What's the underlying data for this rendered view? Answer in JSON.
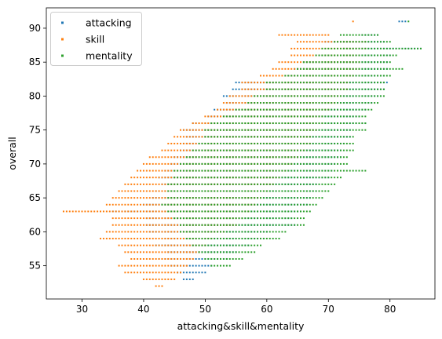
{
  "chart_data": {
    "type": "scatter",
    "xlabel": "attacking&skill&mentality",
    "ylabel": "overall",
    "xlim": [
      24.2,
      87.3
    ],
    "ylim": [
      50.1,
      93.0
    ],
    "xticks": [
      30,
      40,
      50,
      60,
      70,
      80
    ],
    "yticks": [
      55,
      60,
      65,
      70,
      75,
      80,
      85,
      90
    ],
    "grid": false,
    "legend_position": "upper-left",
    "x_step": 0.5,
    "series": [
      {
        "name": "attacking",
        "color": "#1f77b4",
        "rows": [
          {
            "y": 91,
            "x": [
              81.5,
              82.5
            ]
          },
          {
            "y": 89,
            "x": [
              75.5,
              78
            ]
          },
          {
            "y": 88,
            "x": [
              69.5,
              79
            ]
          },
          {
            "y": 87,
            "x": [
              72.5,
              85
            ]
          },
          {
            "y": 86,
            "x": [
              68.5,
              80
            ]
          },
          {
            "y": 85,
            "x": [
              66,
              79.5
            ]
          },
          {
            "y": 84,
            "x": [
              64.5,
              79.5
            ]
          },
          {
            "y": 83,
            "x": [
              63.5,
              79
            ]
          },
          {
            "y": 82,
            "x": [
              55,
              79.5
            ]
          },
          {
            "y": 81,
            "x": [
              54.5,
              79
            ]
          },
          {
            "y": 80,
            "x": [
              53,
              78.5
            ]
          },
          {
            "y": 79,
            "x": [
              53.5,
              77
            ]
          },
          {
            "y": 78,
            "x": [
              51.5,
              76
            ]
          },
          {
            "y": 77,
            "x": [
              50.5,
              75
            ]
          },
          {
            "y": 76,
            "x": [
              48,
              76
            ]
          },
          {
            "y": 75,
            "x": [
              46.5,
              73.5
            ]
          },
          {
            "y": 74,
            "x": [
              47,
              73.5
            ]
          },
          {
            "y": 73,
            "x": [
              46.5,
              72.5
            ]
          },
          {
            "y": 72,
            "x": [
              46,
              72
            ]
          },
          {
            "y": 71,
            "x": [
              45,
              72
            ]
          },
          {
            "y": 70,
            "x": [
              44.5,
              71
            ]
          },
          {
            "y": 69,
            "x": [
              43.5,
              70.5
            ]
          },
          {
            "y": 68,
            "x": [
              42.5,
              70
            ]
          },
          {
            "y": 67,
            "x": [
              43,
              68
            ]
          },
          {
            "y": 66,
            "x": [
              42,
              68
            ]
          },
          {
            "y": 65,
            "x": [
              41.5,
              67
            ]
          },
          {
            "y": 64,
            "x": [
              40,
              66.5
            ]
          },
          {
            "y": 63,
            "x": [
              35,
              65.5
            ]
          },
          {
            "y": 62,
            "x": [
              40.5,
              64
            ]
          },
          {
            "y": 61,
            "x": [
              40.5,
              64.5
            ]
          },
          {
            "y": 60,
            "x": [
              41,
              60
            ]
          },
          {
            "y": 59,
            "x": [
              43,
              59.5
            ]
          },
          {
            "y": 58,
            "x": [
              42,
              57
            ]
          },
          {
            "y": 57,
            "x": [
              44,
              55
            ]
          },
          {
            "y": 56,
            "x": [
              42.5,
              53.5
            ]
          },
          {
            "y": 55,
            "x": [
              44.5,
              51
            ]
          },
          {
            "y": 54,
            "x": [
              45.5,
              50
            ]
          },
          {
            "y": 53,
            "x": [
              46.5,
              48
            ]
          }
        ]
      },
      {
        "name": "skill",
        "color": "#ff7f0e",
        "rows": [
          {
            "y": 91,
            "x": [
              74,
              74
            ]
          },
          {
            "y": 89,
            "x": [
              62,
              70
            ]
          },
          {
            "y": 88,
            "x": [
              65,
              76
            ]
          },
          {
            "y": 87,
            "x": [
              64,
              76
            ]
          },
          {
            "y": 86,
            "x": [
              64,
              75
            ]
          },
          {
            "y": 85,
            "x": [
              62,
              75
            ]
          },
          {
            "y": 84,
            "x": [
              61,
              75
            ]
          },
          {
            "y": 83,
            "x": [
              59,
              74
            ]
          },
          {
            "y": 82,
            "x": [
              56,
              73
            ]
          },
          {
            "y": 81,
            "x": [
              56,
              73
            ]
          },
          {
            "y": 80,
            "x": [
              54,
              72
            ]
          },
          {
            "y": 79,
            "x": [
              53,
              71
            ]
          },
          {
            "y": 78,
            "x": [
              52,
              70
            ]
          },
          {
            "y": 77,
            "x": [
              50,
              69
            ]
          },
          {
            "y": 76,
            "x": [
              48,
              69
            ]
          },
          {
            "y": 75,
            "x": [
              46,
              68
            ]
          },
          {
            "y": 74,
            "x": [
              45,
              67
            ]
          },
          {
            "y": 73,
            "x": [
              44,
              67
            ]
          },
          {
            "y": 72,
            "x": [
              43,
              66
            ]
          },
          {
            "y": 71,
            "x": [
              41,
              65
            ]
          },
          {
            "y": 70,
            "x": [
              40,
              64
            ]
          },
          {
            "y": 69,
            "x": [
              39,
              63
            ]
          },
          {
            "y": 68,
            "x": [
              38,
              62
            ]
          },
          {
            "y": 67,
            "x": [
              37,
              61
            ]
          },
          {
            "y": 66,
            "x": [
              36,
              60
            ]
          },
          {
            "y": 65,
            "x": [
              35,
              59
            ]
          },
          {
            "y": 64,
            "x": [
              34,
              58
            ]
          },
          {
            "y": 63,
            "x": [
              27,
              57
            ]
          },
          {
            "y": 62,
            "x": [
              35,
              56
            ]
          },
          {
            "y": 61,
            "x": [
              35,
              55
            ]
          },
          {
            "y": 60,
            "x": [
              34,
              53
            ]
          },
          {
            "y": 59,
            "x": [
              33,
              51
            ]
          },
          {
            "y": 58,
            "x": [
              36,
              50
            ]
          },
          {
            "y": 57,
            "x": [
              37,
              49
            ]
          },
          {
            "y": 56,
            "x": [
              38,
              48
            ]
          },
          {
            "y": 55,
            "x": [
              36,
              47
            ]
          },
          {
            "y": 54,
            "x": [
              37,
              46
            ]
          },
          {
            "y": 53,
            "x": [
              40,
              45
            ]
          },
          {
            "y": 52,
            "x": [
              42,
              43
            ]
          }
        ]
      },
      {
        "name": "mentality",
        "color": "#2ca02c",
        "rows": [
          {
            "y": 91,
            "x": [
              83,
              83
            ]
          },
          {
            "y": 89,
            "x": [
              72,
              78
            ]
          },
          {
            "y": 88,
            "x": [
              71,
              80
            ]
          },
          {
            "y": 87,
            "x": [
              69,
              85
            ]
          },
          {
            "y": 86,
            "x": [
              68,
              81
            ]
          },
          {
            "y": 85,
            "x": [
              66,
              80
            ]
          },
          {
            "y": 84,
            "x": [
              65,
              82
            ]
          },
          {
            "y": 83,
            "x": [
              63,
              80
            ]
          },
          {
            "y": 82,
            "x": [
              60,
              79
            ]
          },
          {
            "y": 81,
            "x": [
              60,
              79
            ]
          },
          {
            "y": 80,
            "x": [
              58,
              79
            ]
          },
          {
            "y": 79,
            "x": [
              57,
              78
            ]
          },
          {
            "y": 78,
            "x": [
              55,
              77
            ]
          },
          {
            "y": 77,
            "x": [
              53,
              76
            ]
          },
          {
            "y": 76,
            "x": [
              51,
              76
            ]
          },
          {
            "y": 75,
            "x": [
              50,
              76
            ]
          },
          {
            "y": 74,
            "x": [
              50,
              74
            ]
          },
          {
            "y": 73,
            "x": [
              49,
              74
            ]
          },
          {
            "y": 72,
            "x": [
              48,
              74
            ]
          },
          {
            "y": 71,
            "x": [
              47,
              73
            ]
          },
          {
            "y": 70,
            "x": [
              46,
              73
            ]
          },
          {
            "y": 69,
            "x": [
              45,
              76
            ]
          },
          {
            "y": 68,
            "x": [
              45,
              72
            ]
          },
          {
            "y": 67,
            "x": [
              44,
              71
            ]
          },
          {
            "y": 66,
            "x": [
              44,
              70
            ]
          },
          {
            "y": 65,
            "x": [
              44,
              69
            ]
          },
          {
            "y": 64,
            "x": [
              43,
              68
            ]
          },
          {
            "y": 63,
            "x": [
              44,
              67
            ]
          },
          {
            "y": 62,
            "x": [
              45,
              66
            ]
          },
          {
            "y": 61,
            "x": [
              46,
              66
            ]
          },
          {
            "y": 60,
            "x": [
              46,
              63
            ]
          },
          {
            "y": 59,
            "x": [
              47,
              62
            ]
          },
          {
            "y": 58,
            "x": [
              48,
              59
            ]
          },
          {
            "y": 57,
            "x": [
              49,
              58
            ]
          },
          {
            "y": 56,
            "x": [
              50,
              56
            ]
          },
          {
            "y": 55,
            "x": [
              51,
              54
            ]
          }
        ]
      }
    ]
  }
}
